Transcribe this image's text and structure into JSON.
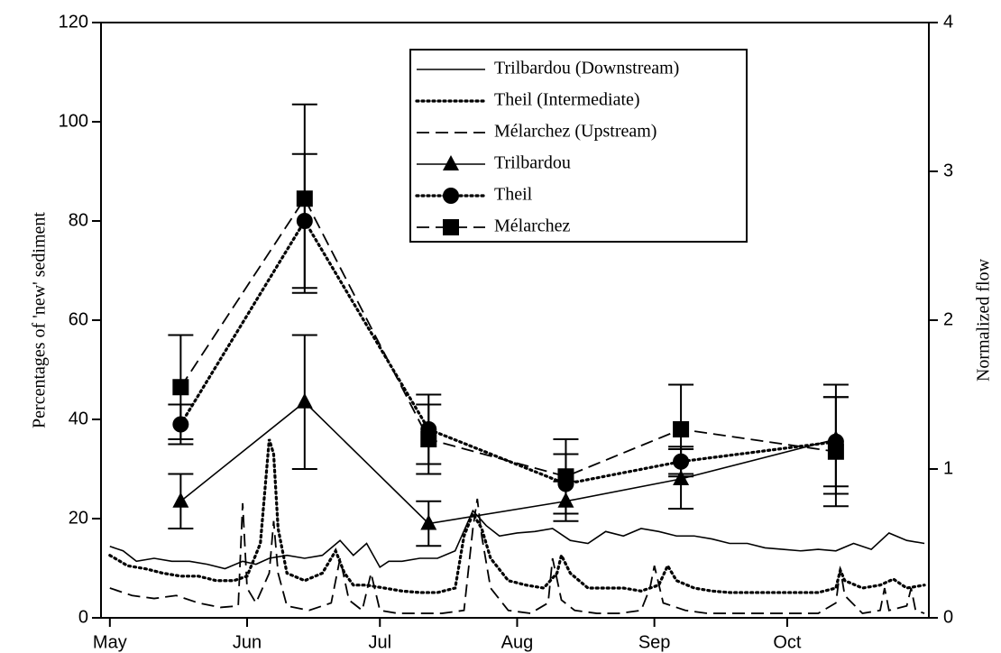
{
  "chart_data": {
    "type": "line",
    "y_label": "Percentages of 'new' sediment",
    "y2_label": "Normalized flow",
    "xlim": [
      -2,
      185
    ],
    "xticks": [
      {
        "value": 0,
        "label": "May"
      },
      {
        "value": 31,
        "label": "Jun"
      },
      {
        "value": 61,
        "label": "Jul"
      },
      {
        "value": 92,
        "label": "Aug"
      },
      {
        "value": 123,
        "label": "Sep"
      },
      {
        "value": 153,
        "label": "Oct"
      }
    ],
    "ylim": [
      0,
      120
    ],
    "yticks": [
      0,
      20,
      40,
      60,
      80,
      100,
      120
    ],
    "y2lim": [
      0,
      4
    ],
    "y2ticks": [
      0,
      1,
      2,
      3,
      4
    ],
    "legend": "upper right",
    "series": [
      {
        "name": "Trilbardou (Downstream)",
        "color": "#000000",
        "style": "solid",
        "axis": "y2",
        "x": [
          0,
          3,
          6,
          10,
          14,
          18,
          22,
          26,
          30,
          33,
          36,
          40,
          44,
          48,
          52,
          55,
          58,
          61,
          63,
          66,
          70,
          74,
          78,
          82,
          85,
          88,
          92,
          96,
          100,
          104,
          108,
          112,
          116,
          120,
          124,
          128,
          132,
          136,
          140,
          144,
          148,
          152,
          156,
          160,
          164,
          168,
          172,
          176,
          180,
          184
        ],
        "values": [
          0.48,
          0.45,
          0.38,
          0.4,
          0.38,
          0.38,
          0.36,
          0.33,
          0.38,
          0.36,
          0.4,
          0.42,
          0.4,
          0.42,
          0.52,
          0.42,
          0.5,
          0.34,
          0.38,
          0.38,
          0.4,
          0.4,
          0.45,
          0.72,
          0.62,
          0.55,
          0.57,
          0.58,
          0.6,
          0.52,
          0.5,
          0.58,
          0.55,
          0.6,
          0.58,
          0.55,
          0.55,
          0.53,
          0.5,
          0.5,
          0.47,
          0.46,
          0.45,
          0.46,
          0.45,
          0.5,
          0.46,
          0.57,
          0.52,
          0.5
        ]
      },
      {
        "name": "Theil (Intermediate)",
        "color": "#000000",
        "style": "dotted",
        "axis": "y2",
        "x": [
          0,
          4,
          8,
          12,
          16,
          20,
          24,
          28,
          31,
          34,
          36,
          37,
          38,
          40,
          44,
          48,
          51,
          53,
          55,
          58,
          62,
          66,
          70,
          74,
          78,
          80,
          82,
          84,
          86,
          90,
          94,
          98,
          101,
          102,
          104,
          108,
          112,
          116,
          120,
          124,
          126,
          128,
          132,
          136,
          140,
          144,
          148,
          152,
          156,
          160,
          164,
          165,
          166,
          170,
          174,
          177,
          180,
          184
        ],
        "values": [
          0.42,
          0.35,
          0.33,
          0.3,
          0.28,
          0.28,
          0.25,
          0.25,
          0.28,
          0.5,
          1.2,
          1.1,
          0.6,
          0.3,
          0.25,
          0.3,
          0.45,
          0.3,
          0.22,
          0.22,
          0.2,
          0.18,
          0.17,
          0.17,
          0.2,
          0.55,
          0.7,
          0.6,
          0.4,
          0.25,
          0.22,
          0.2,
          0.3,
          0.42,
          0.3,
          0.2,
          0.2,
          0.2,
          0.18,
          0.22,
          0.35,
          0.25,
          0.2,
          0.18,
          0.17,
          0.17,
          0.17,
          0.17,
          0.17,
          0.17,
          0.2,
          0.32,
          0.25,
          0.2,
          0.22,
          0.26,
          0.2,
          0.22
        ]
      },
      {
        "name": "Mélarchez (Upstream)",
        "color": "#000000",
        "style": "dashed",
        "axis": "y2",
        "x": [
          0,
          5,
          10,
          15,
          20,
          25,
          29,
          30,
          31,
          33,
          36,
          37,
          38,
          40,
          45,
          50,
          52,
          54,
          57,
          59,
          61,
          65,
          70,
          75,
          80,
          82,
          83,
          84,
          86,
          90,
          95,
          99,
          100,
          102,
          105,
          110,
          115,
          120,
          122,
          123,
          125,
          130,
          135,
          140,
          145,
          150,
          155,
          160,
          164,
          165,
          166,
          170,
          174,
          175,
          176,
          180,
          181,
          182,
          184
        ],
        "values": [
          0.2,
          0.15,
          0.13,
          0.15,
          0.1,
          0.07,
          0.08,
          0.77,
          0.2,
          0.1,
          0.3,
          0.65,
          0.3,
          0.08,
          0.05,
          0.1,
          0.4,
          0.12,
          0.05,
          0.3,
          0.05,
          0.03,
          0.03,
          0.03,
          0.05,
          0.6,
          0.8,
          0.55,
          0.2,
          0.05,
          0.03,
          0.1,
          0.4,
          0.12,
          0.05,
          0.03,
          0.03,
          0.05,
          0.2,
          0.35,
          0.1,
          0.05,
          0.03,
          0.03,
          0.03,
          0.03,
          0.03,
          0.03,
          0.1,
          0.33,
          0.15,
          0.03,
          0.05,
          0.2,
          0.05,
          0.08,
          0.2,
          0.05,
          0.03
        ]
      },
      {
        "name": "Trilbardou",
        "color": "#000000",
        "style": "solid",
        "marker": "triangle",
        "x": [
          16,
          44,
          72,
          103,
          129,
          164
        ],
        "values": [
          23.5,
          43.5,
          19,
          23.5,
          28,
          36
        ],
        "errors": [
          5.5,
          13.5,
          4.5,
          4,
          6,
          11
        ]
      },
      {
        "name": "Theil",
        "color": "#000000",
        "style": "dotted",
        "marker": "circle",
        "x": [
          16,
          44,
          72,
          103,
          129,
          164
        ],
        "values": [
          39,
          80,
          38,
          27,
          31.5,
          35.5
        ],
        "errors": [
          4,
          13.5,
          7,
          6,
          3,
          9
        ]
      },
      {
        "name": "Mélarchez",
        "color": "#000000",
        "style": "dashed",
        "marker": "square",
        "x": [
          16,
          44,
          72,
          103,
          129,
          164
        ],
        "values": [
          46.5,
          84.5,
          36,
          28.5,
          38,
          33.5
        ],
        "errors": [
          10.5,
          19,
          7,
          7.5,
          9,
          11
        ]
      }
    ]
  }
}
